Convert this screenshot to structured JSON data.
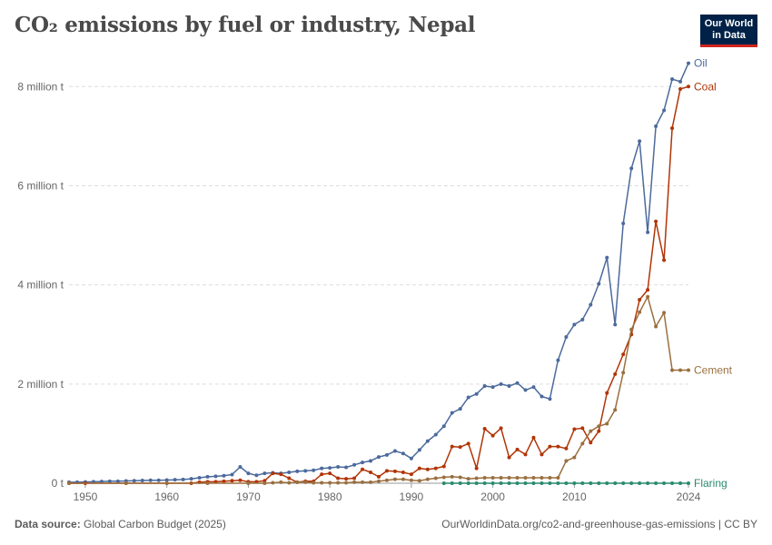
{
  "title": "CO₂ emissions by fuel or industry, Nepal",
  "logo": {
    "line1": "Our World",
    "line2": "in Data"
  },
  "footer": {
    "source_label": "Data source:",
    "source_text": "Global Carbon Budget (2025)",
    "url_text": "OurWorldinData.org/co2-and-greenhouse-gas-emissions | CC BY"
  },
  "chart_data": {
    "type": "line",
    "title": "CO₂ emissions by fuel or industry, Nepal",
    "xlim": [
      1948,
      2024
    ],
    "ylim": [
      0,
      8500000
    ],
    "x_ticks": [
      1950,
      1960,
      1970,
      1980,
      1990,
      2000,
      2010,
      2024
    ],
    "y_ticks": [
      0,
      2000000,
      4000000,
      6000000,
      8000000
    ],
    "y_tick_labels": [
      "0 t",
      "2 million t",
      "4 million t",
      "6 million t",
      "8 million t"
    ],
    "grid": "horizontal dashed",
    "legend": "labels at line ends (right)",
    "series": [
      {
        "name": "Oil",
        "color": "#4c6a9c",
        "points": [
          [
            1948,
            20000
          ],
          [
            1949,
            20000
          ],
          [
            1950,
            25000
          ],
          [
            1951,
            30000
          ],
          [
            1952,
            35000
          ],
          [
            1953,
            40000
          ],
          [
            1954,
            40000
          ],
          [
            1955,
            45000
          ],
          [
            1956,
            50000
          ],
          [
            1957,
            55000
          ],
          [
            1958,
            60000
          ],
          [
            1959,
            60000
          ],
          [
            1960,
            65000
          ],
          [
            1961,
            70000
          ],
          [
            1962,
            75000
          ],
          [
            1963,
            90000
          ],
          [
            1964,
            110000
          ],
          [
            1965,
            130000
          ],
          [
            1966,
            140000
          ],
          [
            1967,
            150000
          ],
          [
            1968,
            175000
          ],
          [
            1969,
            330000
          ],
          [
            1970,
            200000
          ],
          [
            1971,
            160000
          ],
          [
            1972,
            200000
          ],
          [
            1973,
            210000
          ],
          [
            1974,
            200000
          ],
          [
            1975,
            220000
          ],
          [
            1976,
            240000
          ],
          [
            1977,
            250000
          ],
          [
            1978,
            260000
          ],
          [
            1979,
            300000
          ],
          [
            1980,
            310000
          ],
          [
            1981,
            330000
          ],
          [
            1982,
            320000
          ],
          [
            1983,
            370000
          ],
          [
            1984,
            420000
          ],
          [
            1985,
            450000
          ],
          [
            1986,
            530000
          ],
          [
            1987,
            570000
          ],
          [
            1988,
            650000
          ],
          [
            1989,
            600000
          ],
          [
            1990,
            500000
          ],
          [
            1991,
            670000
          ],
          [
            1992,
            850000
          ],
          [
            1993,
            980000
          ],
          [
            1994,
            1150000
          ],
          [
            1995,
            1420000
          ],
          [
            1996,
            1500000
          ],
          [
            1997,
            1730000
          ],
          [
            1998,
            1800000
          ],
          [
            1999,
            1960000
          ],
          [
            2000,
            1940000
          ],
          [
            2001,
            2000000
          ],
          [
            2002,
            1960000
          ],
          [
            2003,
            2020000
          ],
          [
            2004,
            1880000
          ],
          [
            2005,
            1940000
          ],
          [
            2006,
            1750000
          ],
          [
            2007,
            1700000
          ],
          [
            2008,
            2480000
          ],
          [
            2009,
            2950000
          ],
          [
            2010,
            3200000
          ],
          [
            2011,
            3300000
          ],
          [
            2012,
            3600000
          ],
          [
            2013,
            4020000
          ],
          [
            2014,
            4550000
          ],
          [
            2015,
            3200000
          ],
          [
            2016,
            5240000
          ],
          [
            2017,
            6350000
          ],
          [
            2018,
            6900000
          ],
          [
            2019,
            5060000
          ],
          [
            2020,
            7200000
          ],
          [
            2021,
            7520000
          ],
          [
            2022,
            8150000
          ],
          [
            2023,
            8100000
          ],
          [
            2024,
            8470000
          ]
        ]
      },
      {
        "name": "Coal",
        "color": "#b13507",
        "points": [
          [
            1948,
            0
          ],
          [
            1950,
            0
          ],
          [
            1955,
            0
          ],
          [
            1960,
            0
          ],
          [
            1963,
            0
          ],
          [
            1964,
            20000
          ],
          [
            1965,
            30000
          ],
          [
            1966,
            30000
          ],
          [
            1967,
            40000
          ],
          [
            1968,
            50000
          ],
          [
            1969,
            60000
          ],
          [
            1970,
            30000
          ],
          [
            1971,
            30000
          ],
          [
            1972,
            50000
          ],
          [
            1973,
            200000
          ],
          [
            1974,
            180000
          ],
          [
            1975,
            100000
          ],
          [
            1976,
            20000
          ],
          [
            1977,
            40000
          ],
          [
            1978,
            40000
          ],
          [
            1979,
            180000
          ],
          [
            1980,
            200000
          ],
          [
            1981,
            100000
          ],
          [
            1982,
            90000
          ],
          [
            1983,
            100000
          ],
          [
            1984,
            280000
          ],
          [
            1985,
            220000
          ],
          [
            1986,
            130000
          ],
          [
            1987,
            250000
          ],
          [
            1988,
            240000
          ],
          [
            1989,
            220000
          ],
          [
            1990,
            180000
          ],
          [
            1991,
            300000
          ],
          [
            1992,
            280000
          ],
          [
            1993,
            300000
          ],
          [
            1994,
            340000
          ],
          [
            1995,
            740000
          ],
          [
            1996,
            730000
          ],
          [
            1997,
            800000
          ],
          [
            1998,
            300000
          ],
          [
            1999,
            1100000
          ],
          [
            2000,
            960000
          ],
          [
            2001,
            1110000
          ],
          [
            2002,
            520000
          ],
          [
            2003,
            680000
          ],
          [
            2004,
            580000
          ],
          [
            2005,
            920000
          ],
          [
            2006,
            580000
          ],
          [
            2007,
            740000
          ],
          [
            2008,
            740000
          ],
          [
            2009,
            700000
          ],
          [
            2010,
            1090000
          ],
          [
            2011,
            1110000
          ],
          [
            2012,
            820000
          ],
          [
            2013,
            1050000
          ],
          [
            2014,
            1820000
          ],
          [
            2015,
            2200000
          ],
          [
            2016,
            2600000
          ],
          [
            2017,
            3000000
          ],
          [
            2018,
            3700000
          ],
          [
            2019,
            3900000
          ],
          [
            2020,
            5280000
          ],
          [
            2021,
            4500000
          ],
          [
            2022,
            7160000
          ],
          [
            2023,
            7950000
          ],
          [
            2024,
            8000000
          ]
        ]
      },
      {
        "name": "Cement",
        "color": "#9a6f3f",
        "points": [
          [
            1948,
            0
          ],
          [
            1955,
            0
          ],
          [
            1960,
            0
          ],
          [
            1965,
            0
          ],
          [
            1970,
            0
          ],
          [
            1972,
            0
          ],
          [
            1973,
            10000
          ],
          [
            1974,
            20000
          ],
          [
            1975,
            10000
          ],
          [
            1976,
            20000
          ],
          [
            1977,
            20000
          ],
          [
            1978,
            10000
          ],
          [
            1979,
            10000
          ],
          [
            1980,
            10000
          ],
          [
            1981,
            10000
          ],
          [
            1982,
            10000
          ],
          [
            1983,
            20000
          ],
          [
            1984,
            20000
          ],
          [
            1985,
            20000
          ],
          [
            1986,
            40000
          ],
          [
            1987,
            60000
          ],
          [
            1988,
            80000
          ],
          [
            1989,
            80000
          ],
          [
            1990,
            60000
          ],
          [
            1991,
            50000
          ],
          [
            1992,
            80000
          ],
          [
            1993,
            100000
          ],
          [
            1994,
            120000
          ],
          [
            1995,
            130000
          ],
          [
            1996,
            120000
          ],
          [
            1997,
            90000
          ],
          [
            1998,
            100000
          ],
          [
            1999,
            110000
          ],
          [
            2000,
            110000
          ],
          [
            2001,
            110000
          ],
          [
            2002,
            110000
          ],
          [
            2003,
            110000
          ],
          [
            2004,
            110000
          ],
          [
            2005,
            110000
          ],
          [
            2006,
            110000
          ],
          [
            2007,
            110000
          ],
          [
            2008,
            110000
          ],
          [
            2009,
            450000
          ],
          [
            2010,
            520000
          ],
          [
            2011,
            800000
          ],
          [
            2012,
            1050000
          ],
          [
            2013,
            1150000
          ],
          [
            2014,
            1200000
          ],
          [
            2015,
            1480000
          ],
          [
            2016,
            2230000
          ],
          [
            2017,
            3100000
          ],
          [
            2018,
            3450000
          ],
          [
            2019,
            3760000
          ],
          [
            2020,
            3160000
          ],
          [
            2021,
            3440000
          ],
          [
            2022,
            2280000
          ],
          [
            2023,
            2280000
          ],
          [
            2024,
            2280000
          ]
        ]
      },
      {
        "name": "Flaring",
        "color": "#2a8a6e",
        "points": [
          [
            1994,
            0
          ],
          [
            1995,
            0
          ],
          [
            1996,
            0
          ],
          [
            1997,
            0
          ],
          [
            1998,
            0
          ],
          [
            1999,
            0
          ],
          [
            2000,
            0
          ],
          [
            2001,
            0
          ],
          [
            2002,
            0
          ],
          [
            2003,
            0
          ],
          [
            2004,
            0
          ],
          [
            2005,
            0
          ],
          [
            2006,
            0
          ],
          [
            2007,
            0
          ],
          [
            2008,
            0
          ],
          [
            2009,
            0
          ],
          [
            2010,
            0
          ],
          [
            2011,
            0
          ],
          [
            2012,
            0
          ],
          [
            2013,
            0
          ],
          [
            2014,
            0
          ],
          [
            2015,
            0
          ],
          [
            2016,
            0
          ],
          [
            2017,
            0
          ],
          [
            2018,
            0
          ],
          [
            2019,
            0
          ],
          [
            2020,
            0
          ],
          [
            2021,
            0
          ],
          [
            2022,
            0
          ],
          [
            2023,
            0
          ],
          [
            2024,
            0
          ]
        ]
      }
    ]
  }
}
